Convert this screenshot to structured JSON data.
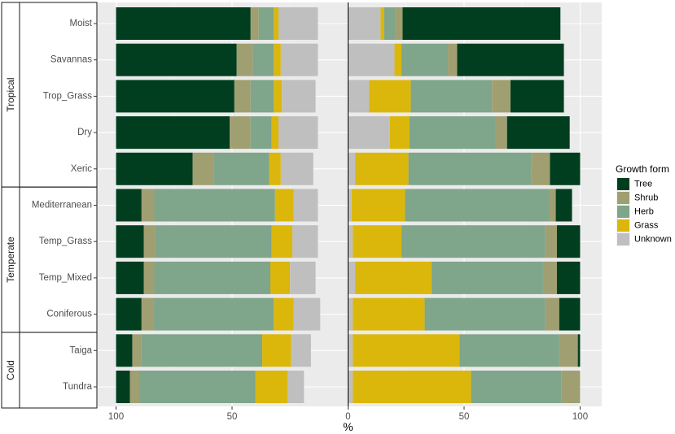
{
  "chart_data": {
    "type": "bar",
    "orientation": "horizontal",
    "layout": "diverging-stacked",
    "xlabel": "%",
    "x_ticks": [
      "100",
      "50",
      "0",
      "50",
      "100"
    ],
    "xlim_left": [
      100,
      0
    ],
    "xlim_right": [
      0,
      100
    ],
    "legend": {
      "title": "Growth form",
      "placement": "right",
      "entries": [
        "Tree",
        "Shrub",
        "Herb",
        "Grass",
        "Unknown"
      ]
    },
    "colors": {
      "Tree": "#003e1f",
      "Shrub": "#a09f72",
      "Herb": "#7fa58b",
      "Grass": "#dbb70c",
      "Unknown": "#bfbfbf"
    },
    "panel_background": "#ebebeb",
    "grid": true,
    "groups": [
      {
        "name": "Tropical",
        "categories": [
          "Moist",
          "Savannas",
          "Trop_Grass",
          "Dry",
          "Xeric"
        ]
      },
      {
        "name": "Temperate",
        "categories": [
          "Mediterranean",
          "Temp_Grass",
          "Temp_Mixed",
          "Coniferous"
        ]
      },
      {
        "name": "Cold",
        "categories": [
          "Taiga",
          "Tundra"
        ]
      }
    ],
    "left": {
      "Moist": {
        "Tree": 58,
        "Shrub": 3.5,
        "Herb": 6.5,
        "Grass": 2,
        "Unknown": 17
      },
      "Savannas": {
        "Tree": 52,
        "Shrub": 7,
        "Herb": 9,
        "Grass": 3,
        "Unknown": 16
      },
      "Trop_Grass": {
        "Tree": 51,
        "Shrub": 7,
        "Herb": 10,
        "Grass": 3.5,
        "Unknown": 14.5
      },
      "Dry": {
        "Tree": 49,
        "Shrub": 9,
        "Herb": 9,
        "Grass": 3,
        "Unknown": 17
      },
      "Xeric": {
        "Tree": 33,
        "Shrub": 9,
        "Herb": 24,
        "Grass": 5,
        "Unknown": 14
      },
      "Mediterranean": {
        "Tree": 11,
        "Shrub": 5.5,
        "Herb": 52,
        "Grass": 8,
        "Unknown": 10.5
      },
      "Temp_Grass": {
        "Tree": 12,
        "Shrub": 5,
        "Herb": 50,
        "Grass": 9,
        "Unknown": 11
      },
      "Temp_Mixed": {
        "Tree": 12,
        "Shrub": 4.5,
        "Herb": 50,
        "Grass": 8.5,
        "Unknown": 11
      },
      "Coniferous": {
        "Tree": 11,
        "Shrub": 5,
        "Herb": 52,
        "Grass": 8.5,
        "Unknown": 11.5
      },
      "Taiga": {
        "Tree": 7,
        "Shrub": 4,
        "Herb": 52,
        "Grass": 12.5,
        "Unknown": 8.5
      },
      "Tundra": {
        "Tree": 6,
        "Shrub": 4,
        "Herb": 50,
        "Grass": 14,
        "Unknown": 7
      }
    },
    "right": {
      "Moist": {
        "Unknown": 14,
        "Grass": 1.5,
        "Herb": 5,
        "Shrub": 3,
        "Tree": 68
      },
      "Savannas": {
        "Unknown": 20,
        "Grass": 3,
        "Herb": 20,
        "Shrub": 4,
        "Tree": 46
      },
      "Trop_Grass": {
        "Unknown": 9,
        "Grass": 18,
        "Herb": 35,
        "Shrub": 8,
        "Tree": 23
      },
      "Dry": {
        "Unknown": 18,
        "Grass": 8.5,
        "Herb": 37,
        "Shrub": 5,
        "Tree": 27
      },
      "Xeric": {
        "Unknown": 3,
        "Grass": 23,
        "Herb": 53,
        "Shrub": 8,
        "Tree": 13
      },
      "Mediterranean": {
        "Unknown": 1.5,
        "Grass": 23,
        "Herb": 62,
        "Shrub": 3,
        "Tree": 7
      },
      "Temp_Grass": {
        "Unknown": 2,
        "Grass": 21,
        "Herb": 62,
        "Shrub": 5,
        "Tree": 10
      },
      "Temp_Mixed": {
        "Unknown": 3,
        "Grass": 33,
        "Herb": 48,
        "Shrub": 6,
        "Tree": 10
      },
      "Coniferous": {
        "Unknown": 2,
        "Grass": 31,
        "Herb": 52,
        "Shrub": 6,
        "Tree": 9
      },
      "Taiga": {
        "Unknown": 2,
        "Grass": 46,
        "Herb": 43,
        "Shrub": 8,
        "Tree": 1
      },
      "Tundra": {
        "Unknown": 2,
        "Grass": 51,
        "Herb": 39,
        "Shrub": 8,
        "Tree": 0
      }
    }
  }
}
